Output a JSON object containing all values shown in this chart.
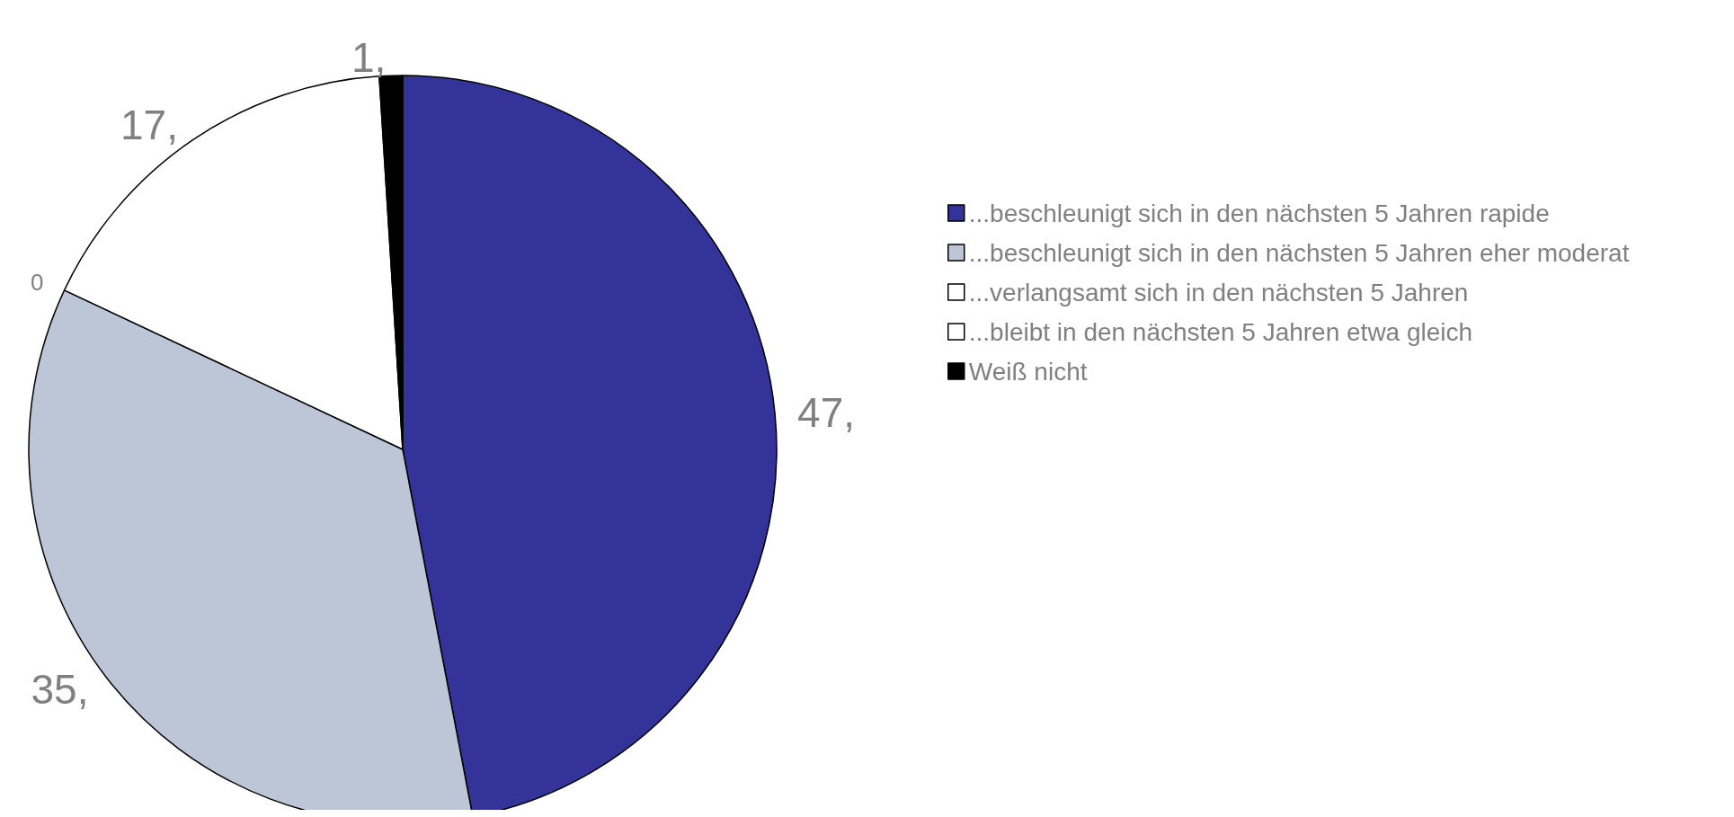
{
  "chart_data": {
    "type": "pie",
    "categories": [
      "...beschleunigt sich in den nächsten 5 Jahren rapide",
      "...beschleunigt sich in den nächsten 5 Jahren eher moderat",
      "...verlangsamt sich in den nächsten 5 Jahren",
      "...bleibt in den nächsten 5 Jahren etwa gleich",
      "Weiß nicht"
    ],
    "values": [
      47,
      35,
      0,
      17,
      1
    ],
    "value_labels": [
      "47,",
      "35,",
      "0",
      "17,",
      "1,"
    ],
    "colors": [
      "#333399",
      "#bcc6d6",
      "#ffffff",
      "#ffffff",
      "#000000"
    ],
    "legend": "right"
  }
}
